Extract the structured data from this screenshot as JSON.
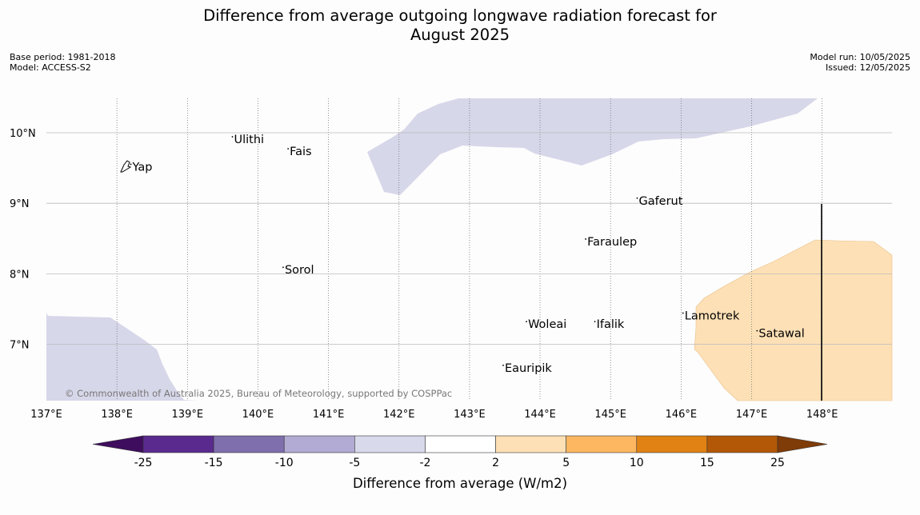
{
  "title_line1": "Difference from average outgoing longwave radiation forecast for",
  "title_line2": "August 2025",
  "base_period": "Base period: 1981-2018",
  "model": "Model: ACCESS-S2",
  "model_run": "Model run: 10/05/2025",
  "issued": "Issued: 12/05/2025",
  "credit": "© Commonwealth of Australia 2025, Bureau of Meteorology, supported by COSPPac",
  "map": {
    "lon_range": [
      137.0,
      149.0
    ],
    "lat_range": [
      6.2,
      10.5
    ],
    "lon_ticks": [
      "137°E",
      "138°E",
      "139°E",
      "140°E",
      "141°E",
      "142°E",
      "143°E",
      "144°E",
      "145°E",
      "146°E",
      "147°E",
      "148°E"
    ],
    "lat_ticks": [
      "10°N",
      "9°N",
      "8°N",
      "7°N"
    ],
    "places": [
      {
        "name": "Yap",
        "lon": 138.22,
        "lat": 9.53
      },
      {
        "name": "Ulithi",
        "lon": 139.66,
        "lat": 9.92
      },
      {
        "name": "Fais",
        "lon": 140.45,
        "lat": 9.75
      },
      {
        "name": "Gaferut",
        "lon": 145.4,
        "lat": 9.05
      },
      {
        "name": "Faraulep",
        "lon": 144.67,
        "lat": 8.47
      },
      {
        "name": "Sorol",
        "lon": 140.38,
        "lat": 8.07
      },
      {
        "name": "Lamotrek",
        "lon": 146.05,
        "lat": 7.42
      },
      {
        "name": "Woleai",
        "lon": 143.83,
        "lat": 7.3
      },
      {
        "name": "Ifalik",
        "lon": 144.8,
        "lat": 7.3
      },
      {
        "name": "Satawal",
        "lon": 147.1,
        "lat": 7.17
      },
      {
        "name": "Eauripik",
        "lon": 143.5,
        "lat": 6.68
      }
    ],
    "shaded_regions": [
      {
        "category": "-5 to -2",
        "color": "#d7d7ea"
      },
      {
        "category": "-5 to -2",
        "color": "#d7d7ea"
      },
      {
        "category": "2 to 5",
        "color": "#fde0b6"
      }
    ]
  },
  "legend": {
    "title": "Difference from average (W/m2)",
    "ticks": [
      "-25",
      "-15",
      "-10",
      "-5",
      "-2",
      "2",
      "5",
      "10",
      "15",
      "25"
    ],
    "colors": [
      "#3f0d5e",
      "#5a2a8f",
      "#7f6fad",
      "#b2abd3",
      "#d8d9eb",
      "#ffffff",
      "#fee0b6",
      "#fdb761",
      "#e08214",
      "#b35806",
      "#7f3b08"
    ]
  }
}
